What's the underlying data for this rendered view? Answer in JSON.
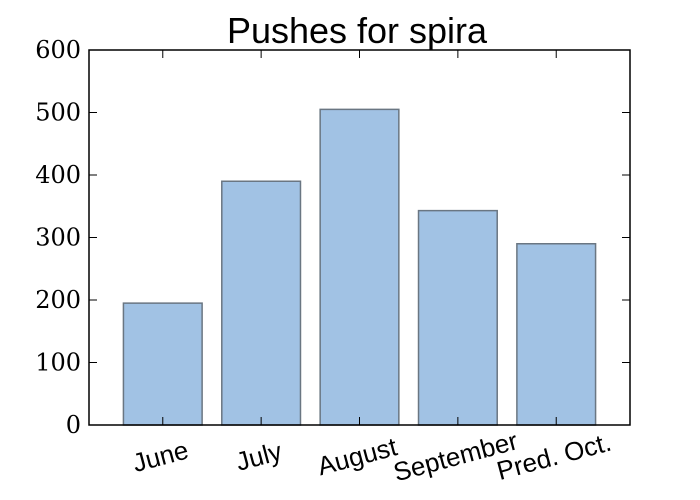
{
  "chart_data": {
    "type": "bar",
    "title": "Pushes for spira",
    "categories": [
      "June",
      "July",
      "August",
      "September",
      "Pred. Oct."
    ],
    "values": [
      195,
      390,
      505,
      343,
      290
    ],
    "xlabel": "",
    "ylabel": "",
    "ylim": [
      0,
      600
    ],
    "yticks": [
      "0",
      "100",
      "200",
      "300",
      "400",
      "500",
      "600"
    ],
    "grid": false,
    "legend": "none",
    "bar_color": "#a1c2e4",
    "bar_edge_color": "#6a7682",
    "xtick_rotation_degrees": -15
  }
}
